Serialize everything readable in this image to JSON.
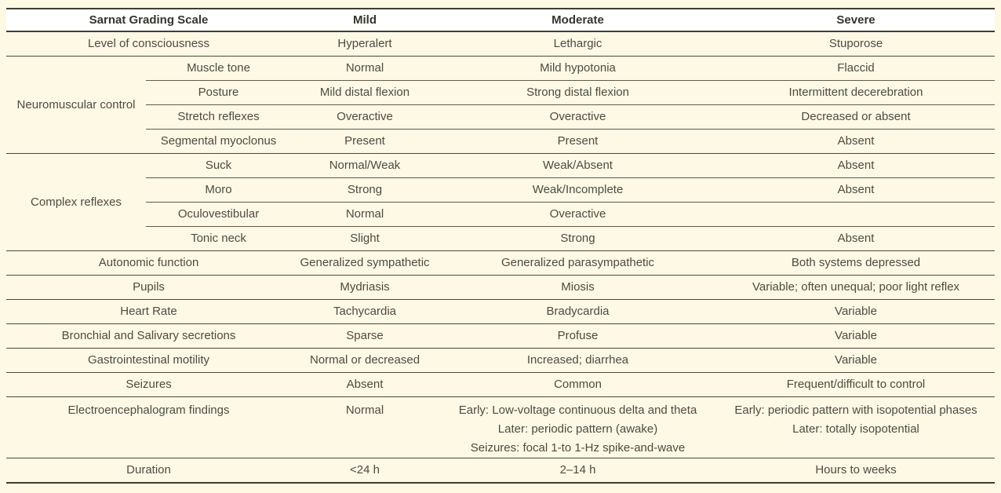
{
  "colors": {
    "page_background": "#fdf9e4",
    "header_background": "#ffffff",
    "body_text": "#4c4c43",
    "header_text": "#35352f",
    "rule_major": "#3e3e33",
    "rule_row": "#4a4a3e",
    "rule_subrow": "#5c5c50"
  },
  "table": {
    "headers": [
      "Sarnat Grading Scale",
      "Mild",
      "Moderate",
      "Severe"
    ],
    "rows": [
      {
        "label": "Level of consciousness",
        "mild": "Hyperalert",
        "moderate": "Lethargic",
        "severe": "Stuporose"
      },
      {
        "group": "Neuromuscular control",
        "label": "Muscle tone",
        "mild": "Normal",
        "moderate": "Mild hypotonia",
        "severe": "Flaccid"
      },
      {
        "label": "Posture",
        "mild": "Mild distal flexion",
        "moderate": "Strong distal flexion",
        "severe": "Intermittent decerebration"
      },
      {
        "label": "Stretch reflexes",
        "mild": "Overactive",
        "moderate": "Overactive",
        "severe": "Decreased or absent"
      },
      {
        "label": "Segmental myoclonus",
        "mild": "Present",
        "moderate": "Present",
        "severe": "Absent"
      },
      {
        "group": "Complex reflexes",
        "label": "Suck",
        "mild": "Normal/Weak",
        "moderate": "Weak/Absent",
        "severe": "Absent"
      },
      {
        "label": "Moro",
        "mild": "Strong",
        "moderate": "Weak/Incomplete",
        "severe": "Absent"
      },
      {
        "label": "Oculovestibular",
        "mild": "Normal",
        "moderate": "Overactive",
        "severe": ""
      },
      {
        "label": "Tonic neck",
        "mild": "Slight",
        "moderate": "Strong",
        "severe": "Absent"
      },
      {
        "label": "Autonomic function",
        "mild": "Generalized sympathetic",
        "moderate": "Generalized parasympathetic",
        "severe": "Both systems depressed"
      },
      {
        "label": "Pupils",
        "mild": "Mydriasis",
        "moderate": "Miosis",
        "severe": "Variable; often unequal; poor light reflex"
      },
      {
        "label": "Heart Rate",
        "mild": "Tachycardia",
        "moderate": "Bradycardia",
        "severe": "Variable"
      },
      {
        "label": "Bronchial and Salivary secretions",
        "mild": "Sparse",
        "moderate": "Profuse",
        "severe": "Variable"
      },
      {
        "label": "Gastrointestinal motility",
        "mild": "Normal or decreased",
        "moderate": "Increased; diarrhea",
        "severe": "Variable"
      },
      {
        "label": "Seizures",
        "mild": "Absent",
        "moderate": "Common",
        "severe": "Frequent/difficult to control"
      },
      {
        "label": "Electroencephalogram findings",
        "mild": "Normal",
        "moderate": [
          "Early: Low-voltage continuous delta and theta",
          "Later: periodic pattern (awake)",
          "Seizures: focal 1-to 1-Hz spike-and-wave"
        ],
        "severe": [
          "Early: periodic pattern with isopotential phases",
          "Later: totally isopotential"
        ]
      },
      {
        "label": "Duration",
        "mild": "<24 h",
        "moderate": "2–14 h",
        "severe": "Hours to weeks"
      }
    ]
  }
}
